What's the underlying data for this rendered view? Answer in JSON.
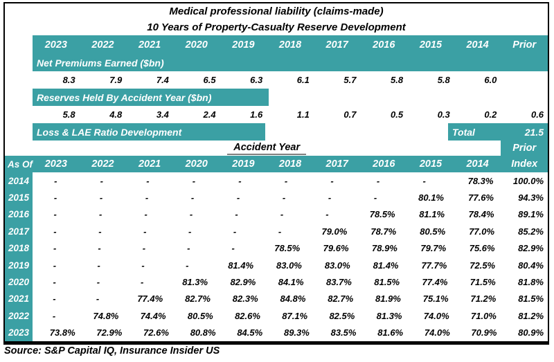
{
  "colors": {
    "teal": "#3BA0A4",
    "border_black": "#000000",
    "underline_gray": "#7f7f7f"
  },
  "title": {
    "line1": "Medical professional liability (claims-made)",
    "line2": "10 Years of Property-Casualty Reserve Development"
  },
  "upper_table": {
    "year_headers": [
      "2023",
      "2022",
      "2021",
      "2020",
      "2019",
      "2018",
      "2017",
      "2016",
      "2015",
      "2014",
      "Prior"
    ],
    "net_premiums": {
      "label": "Net Premiums Earned ($bn)",
      "values": [
        "8.3",
        "7.9",
        "7.4",
        "6.5",
        "6.3",
        "6.1",
        "5.7",
        "5.8",
        "5.8",
        "6.0",
        ""
      ]
    },
    "reserves": {
      "label": "Reserves Held By Accident Year ($bn)",
      "values": [
        "5.8",
        "4.8",
        "3.4",
        "2.4",
        "1.6",
        "1.1",
        "0.7",
        "0.5",
        "0.3",
        "0.2",
        "0.6"
      ]
    },
    "loss_lae": {
      "label": "Loss & LAE Ratio Development",
      "total_label": "Total",
      "total_value": "21.5"
    }
  },
  "lower_table": {
    "accident_year_header": "Accident Year",
    "prior_header": "Prior",
    "as_of_label": "As Of",
    "col_headers": [
      "2023",
      "2022",
      "2021",
      "2020",
      "2019",
      "2018",
      "2017",
      "2016",
      "2015",
      "2014",
      "Index"
    ],
    "rows": [
      {
        "label": "2014",
        "values": [
          "-",
          "-",
          "-",
          "-",
          "-",
          "-",
          "-",
          "-",
          "-",
          "78.3%",
          "100.0%"
        ]
      },
      {
        "label": "2015",
        "values": [
          "-",
          "-",
          "-",
          "-",
          "-",
          "-",
          "-",
          "-",
          "80.1%",
          "77.6%",
          "94.3%"
        ]
      },
      {
        "label": "2016",
        "values": [
          "-",
          "-",
          "-",
          "-",
          "-",
          "-",
          "-",
          "78.5%",
          "81.1%",
          "78.4%",
          "89.1%"
        ]
      },
      {
        "label": "2017",
        "values": [
          "-",
          "-",
          "-",
          "-",
          "-",
          "-",
          "79.0%",
          "78.7%",
          "80.5%",
          "77.0%",
          "85.2%"
        ]
      },
      {
        "label": "2018",
        "values": [
          "-",
          "-",
          "-",
          "-",
          "-",
          "78.5%",
          "79.6%",
          "78.9%",
          "79.7%",
          "75.6%",
          "82.9%"
        ]
      },
      {
        "label": "2019",
        "values": [
          "-",
          "-",
          "-",
          "-",
          "81.4%",
          "83.0%",
          "83.0%",
          "81.4%",
          "77.7%",
          "72.5%",
          "80.4%"
        ]
      },
      {
        "label": "2020",
        "values": [
          "-",
          "-",
          "-",
          "81.3%",
          "82.9%",
          "84.1%",
          "83.7%",
          "81.5%",
          "77.4%",
          "71.5%",
          "81.8%"
        ]
      },
      {
        "label": "2021",
        "values": [
          "-",
          "-",
          "77.4%",
          "82.7%",
          "82.3%",
          "84.8%",
          "82.7%",
          "81.9%",
          "75.1%",
          "71.2%",
          "81.5%"
        ]
      },
      {
        "label": "2022",
        "values": [
          "-",
          "74.8%",
          "74.4%",
          "80.5%",
          "82.6%",
          "87.1%",
          "82.5%",
          "81.3%",
          "74.0%",
          "71.0%",
          "81.2%"
        ]
      },
      {
        "label": "2023",
        "values": [
          "73.8%",
          "72.9%",
          "72.6%",
          "80.8%",
          "84.5%",
          "89.3%",
          "83.5%",
          "81.6%",
          "74.0%",
          "70.9%",
          "80.9%"
        ]
      }
    ]
  },
  "source": "Source: S&P Capital IQ, Insurance Insider US",
  "chart_data": {
    "type": "table",
    "title": "Medical professional liability (claims-made)",
    "subtitle": "10 Years of Property-Casualty Reserve Development",
    "accident_year_columns": [
      "2023",
      "2022",
      "2021",
      "2020",
      "2019",
      "2018",
      "2017",
      "2016",
      "2015",
      "2014",
      "Prior"
    ],
    "net_premiums_earned_bn": [
      8.3,
      7.9,
      7.4,
      6.5,
      6.3,
      6.1,
      5.7,
      5.8,
      5.8,
      6.0,
      null
    ],
    "reserves_held_by_accident_year_bn": [
      5.8,
      4.8,
      3.4,
      2.4,
      1.6,
      1.1,
      0.7,
      0.5,
      0.3,
      0.2,
      0.6
    ],
    "reserves_total_bn": 21.5,
    "loss_lae_ratio_development_pct": {
      "as_of_rows": [
        "2014",
        "2015",
        "2016",
        "2017",
        "2018",
        "2019",
        "2020",
        "2021",
        "2022",
        "2023"
      ],
      "columns": [
        "2023",
        "2022",
        "2021",
        "2020",
        "2019",
        "2018",
        "2017",
        "2016",
        "2015",
        "2014",
        "Prior Index"
      ],
      "matrix": [
        [
          null,
          null,
          null,
          null,
          null,
          null,
          null,
          null,
          null,
          78.3,
          100.0
        ],
        [
          null,
          null,
          null,
          null,
          null,
          null,
          null,
          null,
          80.1,
          77.6,
          94.3
        ],
        [
          null,
          null,
          null,
          null,
          null,
          null,
          null,
          78.5,
          81.1,
          78.4,
          89.1
        ],
        [
          null,
          null,
          null,
          null,
          null,
          null,
          79.0,
          78.7,
          80.5,
          77.0,
          85.2
        ],
        [
          null,
          null,
          null,
          null,
          null,
          78.5,
          79.6,
          78.9,
          79.7,
          75.6,
          82.9
        ],
        [
          null,
          null,
          null,
          null,
          81.4,
          83.0,
          83.0,
          81.4,
          77.7,
          72.5,
          80.4
        ],
        [
          null,
          null,
          null,
          81.3,
          82.9,
          84.1,
          83.7,
          81.5,
          77.4,
          71.5,
          81.8
        ],
        [
          null,
          null,
          77.4,
          82.7,
          82.3,
          84.8,
          82.7,
          81.9,
          75.1,
          71.2,
          81.5
        ],
        [
          null,
          74.8,
          74.4,
          80.5,
          82.6,
          87.1,
          82.5,
          81.3,
          74.0,
          71.0,
          81.2
        ],
        [
          73.8,
          72.9,
          72.6,
          80.8,
          84.5,
          89.3,
          83.5,
          81.6,
          74.0,
          70.9,
          80.9
        ]
      ]
    },
    "source": "Source: S&P Capital IQ, Insurance Insider US"
  }
}
